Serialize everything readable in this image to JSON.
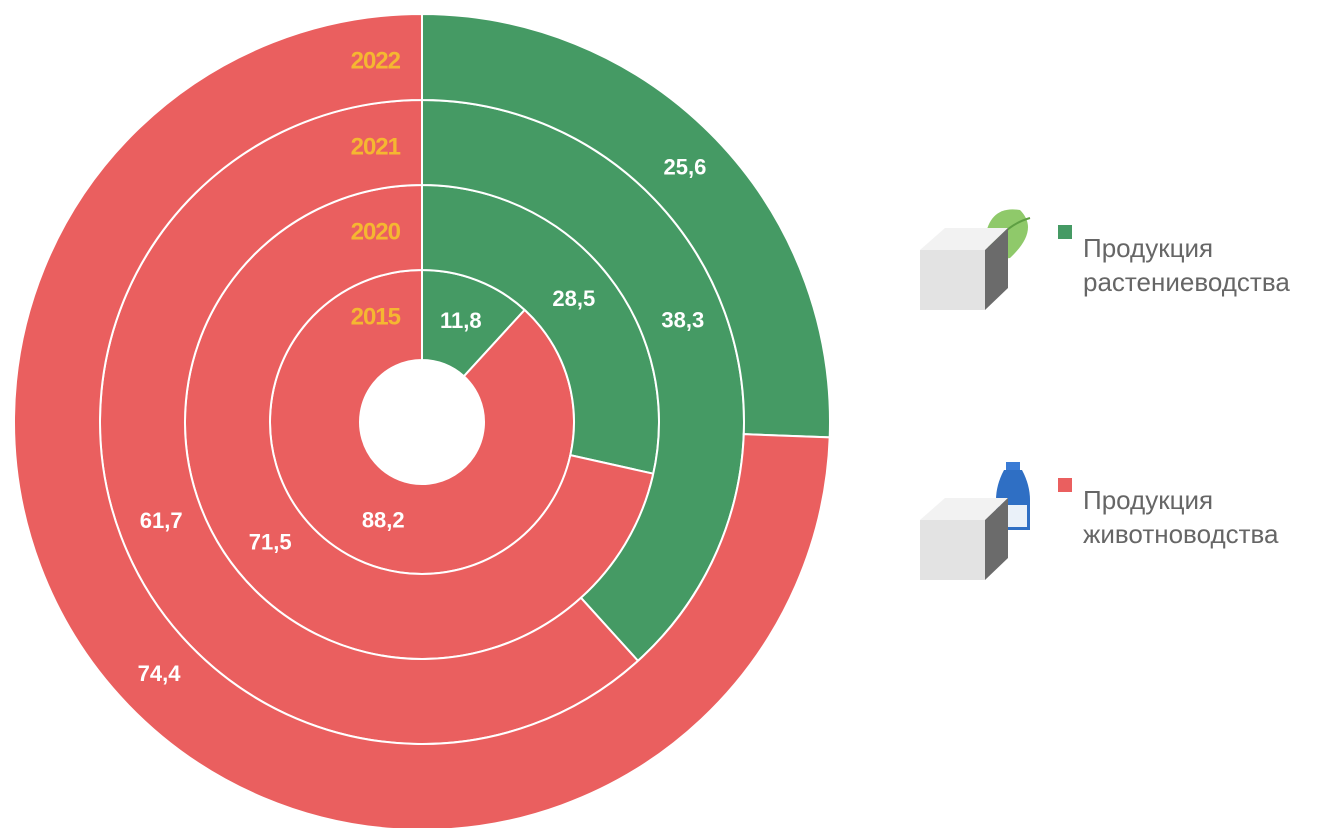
{
  "chart_data": {
    "type": "multi-ring-donut",
    "categories": [
      "2015",
      "2020",
      "2021",
      "2022"
    ],
    "series": [
      {
        "name": "Продукция растениеводства",
        "color": "#459a64",
        "values": [
          11.8,
          28.5,
          38.3,
          25.6
        ],
        "value_labels": [
          "11,8",
          "28,5",
          "38,3",
          "25,6"
        ]
      },
      {
        "name": "Продукция животноводства",
        "color": "#ea5f5f",
        "values": [
          88.2,
          71.5,
          61.7,
          74.4
        ],
        "value_labels": [
          "88,2",
          "71,5",
          "61,7",
          "74,4"
        ]
      }
    ]
  }
}
